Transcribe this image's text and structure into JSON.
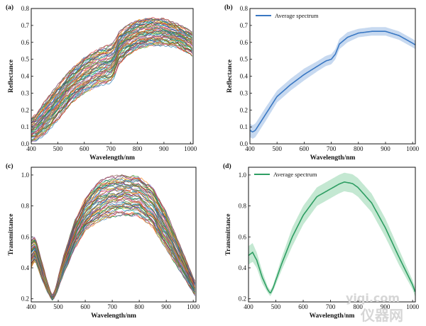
{
  "chart_data": [
    {
      "panel_label": "(a)",
      "type": "line",
      "style": "multi",
      "xlabel": "Wavelength/nm",
      "ylabel": "Reflectance",
      "xlim": [
        400,
        1010
      ],
      "ylim": [
        0.0,
        0.8
      ],
      "xticks": [
        400,
        500,
        600,
        700,
        800,
        900,
        1000
      ],
      "yticks": [
        0.0,
        0.1,
        0.2,
        0.3,
        0.4,
        0.5,
        0.6,
        0.7,
        0.8
      ],
      "x": [
        400,
        420,
        450,
        500,
        550,
        600,
        650,
        700,
        715,
        730,
        760,
        800,
        850,
        900,
        950,
        1000,
        1010
      ],
      "upper": [
        0.15,
        0.18,
        0.25,
        0.35,
        0.44,
        0.51,
        0.56,
        0.59,
        0.61,
        0.66,
        0.7,
        0.73,
        0.745,
        0.74,
        0.71,
        0.67,
        0.65
      ],
      "lower": [
        0.01,
        0.02,
        0.05,
        0.14,
        0.24,
        0.3,
        0.34,
        0.36,
        0.4,
        0.47,
        0.52,
        0.56,
        0.58,
        0.58,
        0.57,
        0.53,
        0.51
      ],
      "line_count": 60
    },
    {
      "panel_label": "(b)",
      "type": "line",
      "style": "mean_band",
      "xlabel": "Wavelength/nm",
      "ylabel": "Reflectance",
      "xlim": [
        400,
        1010
      ],
      "ylim": [
        0.0,
        0.8
      ],
      "xticks": [
        400,
        500,
        600,
        700,
        800,
        900,
        1000
      ],
      "yticks": [
        0.0,
        0.1,
        0.2,
        0.3,
        0.4,
        0.5,
        0.6,
        0.7,
        0.8
      ],
      "legend": "Average spectrum",
      "color": "#3A78C3",
      "band_color": "#C7D9F0",
      "x": [
        400,
        410,
        420,
        440,
        460,
        500,
        550,
        600,
        650,
        680,
        700,
        715,
        730,
        760,
        800,
        850,
        900,
        950,
        1000,
        1010
      ],
      "values": [
        0.08,
        0.07,
        0.08,
        0.13,
        0.18,
        0.28,
        0.35,
        0.41,
        0.46,
        0.49,
        0.5,
        0.53,
        0.59,
        0.63,
        0.655,
        0.665,
        0.665,
        0.64,
        0.595,
        0.585
      ],
      "spread": [
        0.04,
        0.04,
        0.04,
        0.04,
        0.04,
        0.035,
        0.035,
        0.035,
        0.03,
        0.03,
        0.03,
        0.03,
        0.03,
        0.03,
        0.025,
        0.025,
        0.025,
        0.025,
        0.025,
        0.025
      ]
    },
    {
      "panel_label": "(c)",
      "type": "line",
      "style": "multi",
      "xlabel": "Wavelength/nm",
      "ylabel": "Transmittance",
      "xlim": [
        400,
        1010
      ],
      "ylim": [
        0.18,
        1.05
      ],
      "xticks": [
        400,
        500,
        600,
        700,
        800,
        900,
        1000
      ],
      "yticks": [
        0.2,
        0.4,
        0.6,
        0.8,
        1.0
      ],
      "x": [
        400,
        415,
        430,
        450,
        470,
        480,
        490,
        520,
        560,
        600,
        650,
        700,
        750,
        800,
        850,
        900,
        950,
        1000,
        1010
      ],
      "upper": [
        0.58,
        0.6,
        0.5,
        0.37,
        0.25,
        0.22,
        0.27,
        0.48,
        0.7,
        0.85,
        0.96,
        0.995,
        1.0,
        0.99,
        0.92,
        0.76,
        0.55,
        0.34,
        0.3
      ],
      "lower": [
        0.4,
        0.45,
        0.37,
        0.28,
        0.21,
        0.19,
        0.22,
        0.36,
        0.52,
        0.64,
        0.7,
        0.73,
        0.74,
        0.73,
        0.66,
        0.52,
        0.38,
        0.24,
        0.21
      ],
      "line_count": 60
    },
    {
      "panel_label": "(d)",
      "type": "line",
      "style": "mean_band",
      "xlabel": "Wavelength/nm",
      "ylabel": "Transmittance",
      "xlim": [
        400,
        1010
      ],
      "ylim": [
        0.18,
        1.05
      ],
      "xticks": [
        400,
        500,
        600,
        700,
        800,
        900,
        1000
      ],
      "yticks": [
        0.2,
        0.4,
        0.6,
        0.8,
        1.0
      ],
      "legend": "Average spectrum",
      "color": "#2E9E63",
      "band_color": "#C4E8D2",
      "x": [
        400,
        415,
        430,
        450,
        470,
        480,
        490,
        520,
        560,
        600,
        650,
        700,
        730,
        750,
        780,
        800,
        850,
        900,
        950,
        1000,
        1010
      ],
      "values": [
        0.48,
        0.5,
        0.45,
        0.34,
        0.26,
        0.235,
        0.27,
        0.42,
        0.6,
        0.74,
        0.86,
        0.91,
        0.94,
        0.955,
        0.945,
        0.92,
        0.82,
        0.66,
        0.47,
        0.29,
        0.24
      ],
      "spread": [
        0.06,
        0.06,
        0.05,
        0.04,
        0.02,
        0.02,
        0.02,
        0.04,
        0.06,
        0.06,
        0.06,
        0.06,
        0.06,
        0.06,
        0.06,
        0.06,
        0.06,
        0.06,
        0.05,
        0.03,
        0.03
      ]
    }
  ],
  "watermark": {
    "site": "yiqi.com",
    "cn": "仪器网"
  }
}
